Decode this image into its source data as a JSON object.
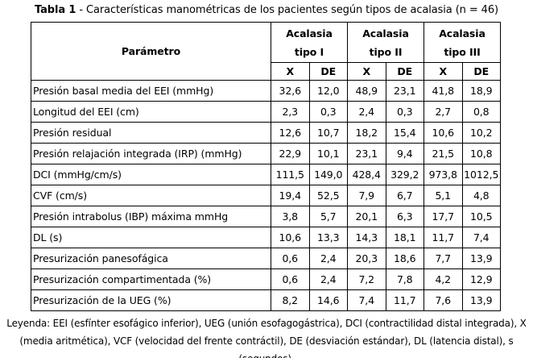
{
  "caption": {
    "label": "Tabla 1",
    "text": " - Características manométricas de los pacientes según tipos de acalasia (n = 46)"
  },
  "table": {
    "param_header": "Parámetro",
    "group_headers": [
      {
        "name": "Acalasia",
        "type": "tipo I"
      },
      {
        "name": "Acalasia",
        "type": "tipo II"
      },
      {
        "name": "Acalasia",
        "type": "tipo III"
      }
    ],
    "stat_headers": [
      "X",
      "DE",
      "X",
      "DE",
      "X",
      "DE"
    ],
    "rows": [
      {
        "param": "Presión basal media del EEI (mmHg)",
        "values": [
          "32,6",
          "12,0",
          "48,9",
          "23,1",
          "41,8",
          "18,9"
        ]
      },
      {
        "param": "Longitud del EEI (cm)",
        "values": [
          "2,3",
          "0,3",
          "2,4",
          "0,3",
          "2,7",
          "0,8"
        ]
      },
      {
        "param": "Presión residual",
        "values": [
          "12,6",
          "10,7",
          "18,2",
          "15,4",
          "10,6",
          "10,2"
        ]
      },
      {
        "param": "Presión relajación integrada (IRP) (mmHg)",
        "values": [
          "22,9",
          "10,1",
          "23,1",
          "9,4",
          "21,5",
          "10,8"
        ]
      },
      {
        "param": "DCI (mmHg/cm/s)",
        "values": [
          "111,5",
          "149,0",
          "428,4",
          "329,2",
          "973,8",
          "1012,5"
        ]
      },
      {
        "param": "CVF (cm/s)",
        "values": [
          "19,4",
          "52,5",
          "7,9",
          "6,7",
          "5,1",
          "4,8"
        ]
      },
      {
        "param": "Presión intrabolus (IBP) máxima mmHg",
        "values": [
          "3,8",
          "5,7",
          "20,1",
          "6,3",
          "17,7",
          "10,5"
        ]
      },
      {
        "param": "DL (s)",
        "values": [
          "10,6",
          "13,3",
          "14,3",
          "18,1",
          "11,7",
          "7,4"
        ]
      },
      {
        "param": "Presurización panesofágica",
        "values": [
          "0,6",
          "2,4",
          "20,3",
          "18,6",
          "7,7",
          "13,9"
        ]
      },
      {
        "param": "Presurización compartimentada (%)",
        "values": [
          "0,6",
          "2,4",
          "7,2",
          "7,8",
          "4,2",
          "12,9"
        ]
      },
      {
        "param": "Presurización de la UEG (%)",
        "values": [
          "8,2",
          "14,6",
          "7,4",
          "11,7",
          "7,6",
          "13,9"
        ]
      }
    ]
  },
  "legend": "Leyenda: EEI (esfínter esofágico inferior), UEG (unión esofagogástrica), DCI (contractilidad distal integrada), X (media aritmética), VCF (velocidad del frente contráctil), DE (desviación estándar), DL (latencia distal), s (segundos)."
}
